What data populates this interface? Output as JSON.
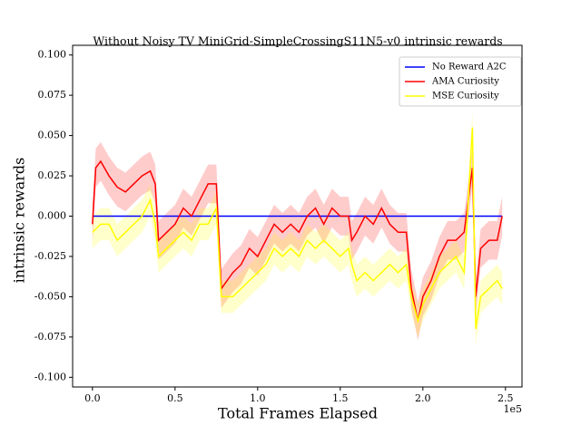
{
  "chart_data": {
    "type": "line",
    "title": "Without Noisy TV MiniGrid-SimpleCrossingS11N5-v0 intrinsic rewards",
    "xlabel": "Total Frames Elapsed",
    "ylabel": "intrinsic rewards",
    "x_offset_label": "1e5",
    "xlim": [
      -0.12,
      2.6
    ],
    "ylim": [
      -0.106,
      0.106
    ],
    "xticks": [
      {
        "value": 0,
        "label": "0.0"
      },
      {
        "value": 0.5,
        "label": "0.5"
      },
      {
        "value": 1,
        "label": "1.0"
      },
      {
        "value": 1.5,
        "label": "1.5"
      },
      {
        "value": 2,
        "label": "2.0"
      },
      {
        "value": 2.5,
        "label": "2.5"
      }
    ],
    "yticks": [
      {
        "value": -0.1,
        "label": "-0.100"
      },
      -0.075,
      {
        "value": -0.05,
        "label": "-0.050"
      },
      -0.025,
      {
        "value": 0,
        "label": "0.000"
      },
      0.025,
      {
        "value": 0.05,
        "label": "0.050"
      },
      0.075,
      {
        "value": 0.1,
        "label": "0.100"
      }
    ],
    "grid": false,
    "legend": "upper right",
    "x": [
      0,
      0.02,
      0.05,
      0.1,
      0.15,
      0.2,
      0.25,
      0.3,
      0.35,
      0.38,
      0.4,
      0.45,
      0.5,
      0.55,
      0.6,
      0.65,
      0.7,
      0.75,
      0.78,
      0.85,
      0.9,
      0.95,
      1.0,
      1.05,
      1.1,
      1.15,
      1.2,
      1.25,
      1.3,
      1.35,
      1.4,
      1.45,
      1.5,
      1.55,
      1.57,
      1.6,
      1.65,
      1.7,
      1.75,
      1.8,
      1.85,
      1.9,
      1.93,
      1.97,
      2.0,
      2.05,
      2.1,
      2.15,
      2.2,
      2.25,
      2.3,
      2.32,
      2.35,
      2.4,
      2.45,
      2.48
    ],
    "series": [
      {
        "name": "No Reward A2C",
        "color": "#0000ff",
        "x": [
          0,
          2.48
        ],
        "values": [
          0,
          0
        ]
      },
      {
        "name": "AMA Curiosity",
        "color": "#ff0000",
        "values": [
          -0.005,
          0.03,
          0.034,
          0.025,
          0.018,
          0.015,
          0.02,
          0.025,
          0.028,
          0.02,
          -0.015,
          -0.01,
          -0.005,
          0.005,
          0,
          0.01,
          0.02,
          0.02,
          -0.045,
          -0.035,
          -0.03,
          -0.02,
          -0.025,
          -0.015,
          -0.005,
          -0.01,
          -0.005,
          -0.01,
          0,
          0.005,
          -0.005,
          0.005,
          0,
          0,
          -0.015,
          -0.01,
          0,
          -0.005,
          0.005,
          -0.005,
          -0.01,
          -0.01,
          -0.045,
          -0.065,
          -0.05,
          -0.04,
          -0.025,
          -0.015,
          -0.015,
          -0.01,
          0.03,
          -0.05,
          -0.02,
          -0.015,
          -0.015,
          0
        ],
        "upper": [
          0.007,
          0.042,
          0.046,
          0.037,
          0.03,
          0.027,
          0.032,
          0.037,
          0.04,
          0.032,
          -0.003,
          0.002,
          0.007,
          0.017,
          0.012,
          0.022,
          0.032,
          0.032,
          -0.033,
          -0.023,
          -0.018,
          -0.008,
          -0.013,
          -0.003,
          0.007,
          0.002,
          0.007,
          0.002,
          0.012,
          0.017,
          0.007,
          0.017,
          0.012,
          0.012,
          -0.003,
          0.002,
          0.012,
          0.007,
          0.017,
          0.007,
          0.002,
          0.002,
          -0.033,
          -0.053,
          -0.038,
          -0.028,
          -0.013,
          -0.003,
          -0.003,
          0.002,
          0.042,
          -0.038,
          -0.008,
          -0.003,
          -0.003,
          0.012
        ],
        "lower": [
          -0.017,
          0.018,
          0.022,
          0.013,
          0.006,
          0.003,
          0.008,
          0.013,
          0.016,
          0.008,
          -0.027,
          -0.022,
          -0.017,
          -0.007,
          -0.012,
          -0.002,
          0.008,
          0.008,
          -0.057,
          -0.047,
          -0.042,
          -0.032,
          -0.037,
          -0.027,
          -0.017,
          -0.022,
          -0.017,
          -0.022,
          -0.012,
          -0.007,
          -0.017,
          -0.007,
          -0.012,
          -0.012,
          -0.027,
          -0.022,
          -0.012,
          -0.017,
          -0.007,
          -0.017,
          -0.022,
          -0.022,
          -0.057,
          -0.077,
          -0.062,
          -0.052,
          -0.037,
          -0.027,
          -0.027,
          -0.022,
          0.018,
          -0.062,
          -0.032,
          -0.027,
          -0.027,
          -0.012
        ]
      },
      {
        "name": "MSE Curiosity",
        "color": "#ffff00",
        "values": [
          -0.01,
          -0.008,
          -0.005,
          -0.005,
          -0.015,
          -0.01,
          -0.005,
          0,
          0.01,
          -0.005,
          -0.025,
          -0.02,
          -0.015,
          -0.01,
          -0.015,
          -0.005,
          -0.005,
          0.005,
          -0.05,
          -0.05,
          -0.045,
          -0.04,
          -0.035,
          -0.03,
          -0.02,
          -0.025,
          -0.02,
          -0.025,
          -0.015,
          -0.02,
          -0.015,
          -0.02,
          -0.025,
          -0.02,
          -0.03,
          -0.04,
          -0.035,
          -0.04,
          -0.035,
          -0.03,
          -0.035,
          -0.03,
          -0.05,
          -0.065,
          -0.055,
          -0.045,
          -0.035,
          -0.03,
          -0.025,
          -0.035,
          0.055,
          -0.07,
          -0.05,
          -0.045,
          -0.04,
          -0.045
        ],
        "upper": [
          0,
          0.002,
          0.005,
          0.005,
          -0.005,
          0,
          0.005,
          0.01,
          0.02,
          0.005,
          -0.015,
          -0.01,
          -0.005,
          0,
          -0.005,
          0.005,
          0.005,
          0.015,
          -0.04,
          -0.04,
          -0.035,
          -0.03,
          -0.025,
          -0.02,
          -0.01,
          -0.015,
          -0.01,
          -0.015,
          -0.005,
          -0.01,
          -0.005,
          -0.01,
          -0.015,
          -0.01,
          -0.02,
          -0.03,
          -0.025,
          -0.03,
          -0.025,
          -0.02,
          -0.025,
          -0.02,
          -0.04,
          -0.055,
          -0.045,
          -0.035,
          -0.025,
          -0.02,
          -0.015,
          -0.025,
          0.065,
          -0.06,
          -0.04,
          -0.035,
          -0.03,
          -0.035
        ],
        "lower": [
          -0.02,
          -0.018,
          -0.015,
          -0.015,
          -0.025,
          -0.02,
          -0.015,
          -0.01,
          0,
          -0.015,
          -0.035,
          -0.03,
          -0.025,
          -0.02,
          -0.025,
          -0.015,
          -0.015,
          -0.005,
          -0.06,
          -0.06,
          -0.055,
          -0.05,
          -0.045,
          -0.04,
          -0.03,
          -0.035,
          -0.03,
          -0.035,
          -0.025,
          -0.03,
          -0.025,
          -0.03,
          -0.035,
          -0.03,
          -0.04,
          -0.05,
          -0.045,
          -0.05,
          -0.045,
          -0.04,
          -0.045,
          -0.04,
          -0.06,
          -0.075,
          -0.065,
          -0.055,
          -0.045,
          -0.04,
          -0.035,
          -0.045,
          0.045,
          -0.08,
          -0.06,
          -0.055,
          -0.05,
          -0.055
        ]
      }
    ]
  }
}
